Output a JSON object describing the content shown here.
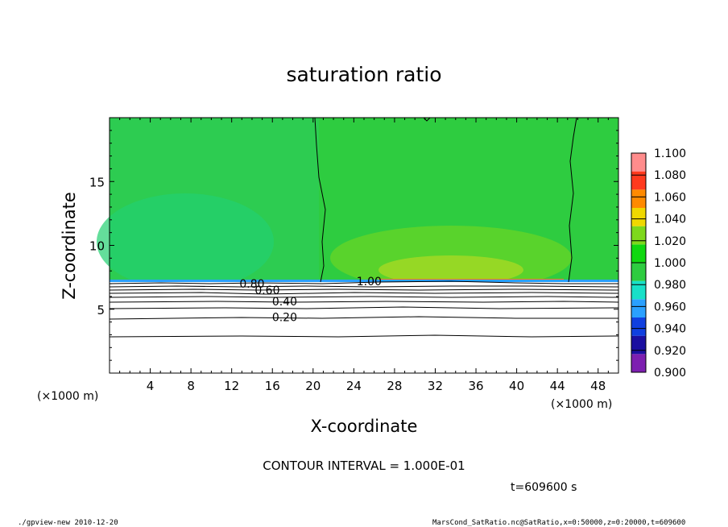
{
  "chart_data": {
    "type": "heatmap",
    "title": "saturation ratio",
    "xlabel": "X-coordinate",
    "ylabel": "Z-coordinate",
    "xunit": "(×1000 m)",
    "yunit": "(×1000 m)",
    "xlim": [
      0,
      50
    ],
    "ylim": [
      0,
      20
    ],
    "xticks": [
      "4",
      "8",
      "12",
      "16",
      "20",
      "24",
      "28",
      "32",
      "36",
      "40",
      "44",
      "48"
    ],
    "xtick_values": [
      4,
      8,
      12,
      16,
      20,
      24,
      28,
      32,
      36,
      40,
      44,
      48
    ],
    "yticks": [
      "5",
      "10",
      "15"
    ],
    "ytick_values": [
      5,
      10,
      15
    ],
    "colorbar": {
      "levels": [
        "0.900",
        "0.920",
        "0.940",
        "0.960",
        "0.980",
        "1.000",
        "1.020",
        "1.040",
        "1.060",
        "1.080",
        "1.100"
      ],
      "colors": [
        "#7d1fb0",
        "#1a0fa0",
        "#1040e0",
        "#2aa0ff",
        "#18e0c8",
        "#2ecc40",
        "#10d810",
        "#7ed81c",
        "#f0d800",
        "#ff8a00",
        "#ff3a1e",
        "#ff8c8c"
      ]
    },
    "contour_labels": [
      {
        "text": "1.00",
        "x": 25.5,
        "z": 7.2
      },
      {
        "text": "0.80",
        "x": 14.0,
        "z": 7.0
      },
      {
        "text": "0.60",
        "x": 15.5,
        "z": 6.5
      },
      {
        "text": "0.40",
        "x": 17.2,
        "z": 5.6
      },
      {
        "text": "0.20",
        "x": 17.2,
        "z": 4.4
      }
    ],
    "contour_interval_text": "CONTOUR INTERVAL = 1.000E-01",
    "time_text": "t=609600 s"
  },
  "footer": {
    "left": "./gpview-new  2010-12-20",
    "right": "MarsCond_SatRatio.nc@SatRatio,x=0:50000,z=0:20000,t=609600"
  }
}
